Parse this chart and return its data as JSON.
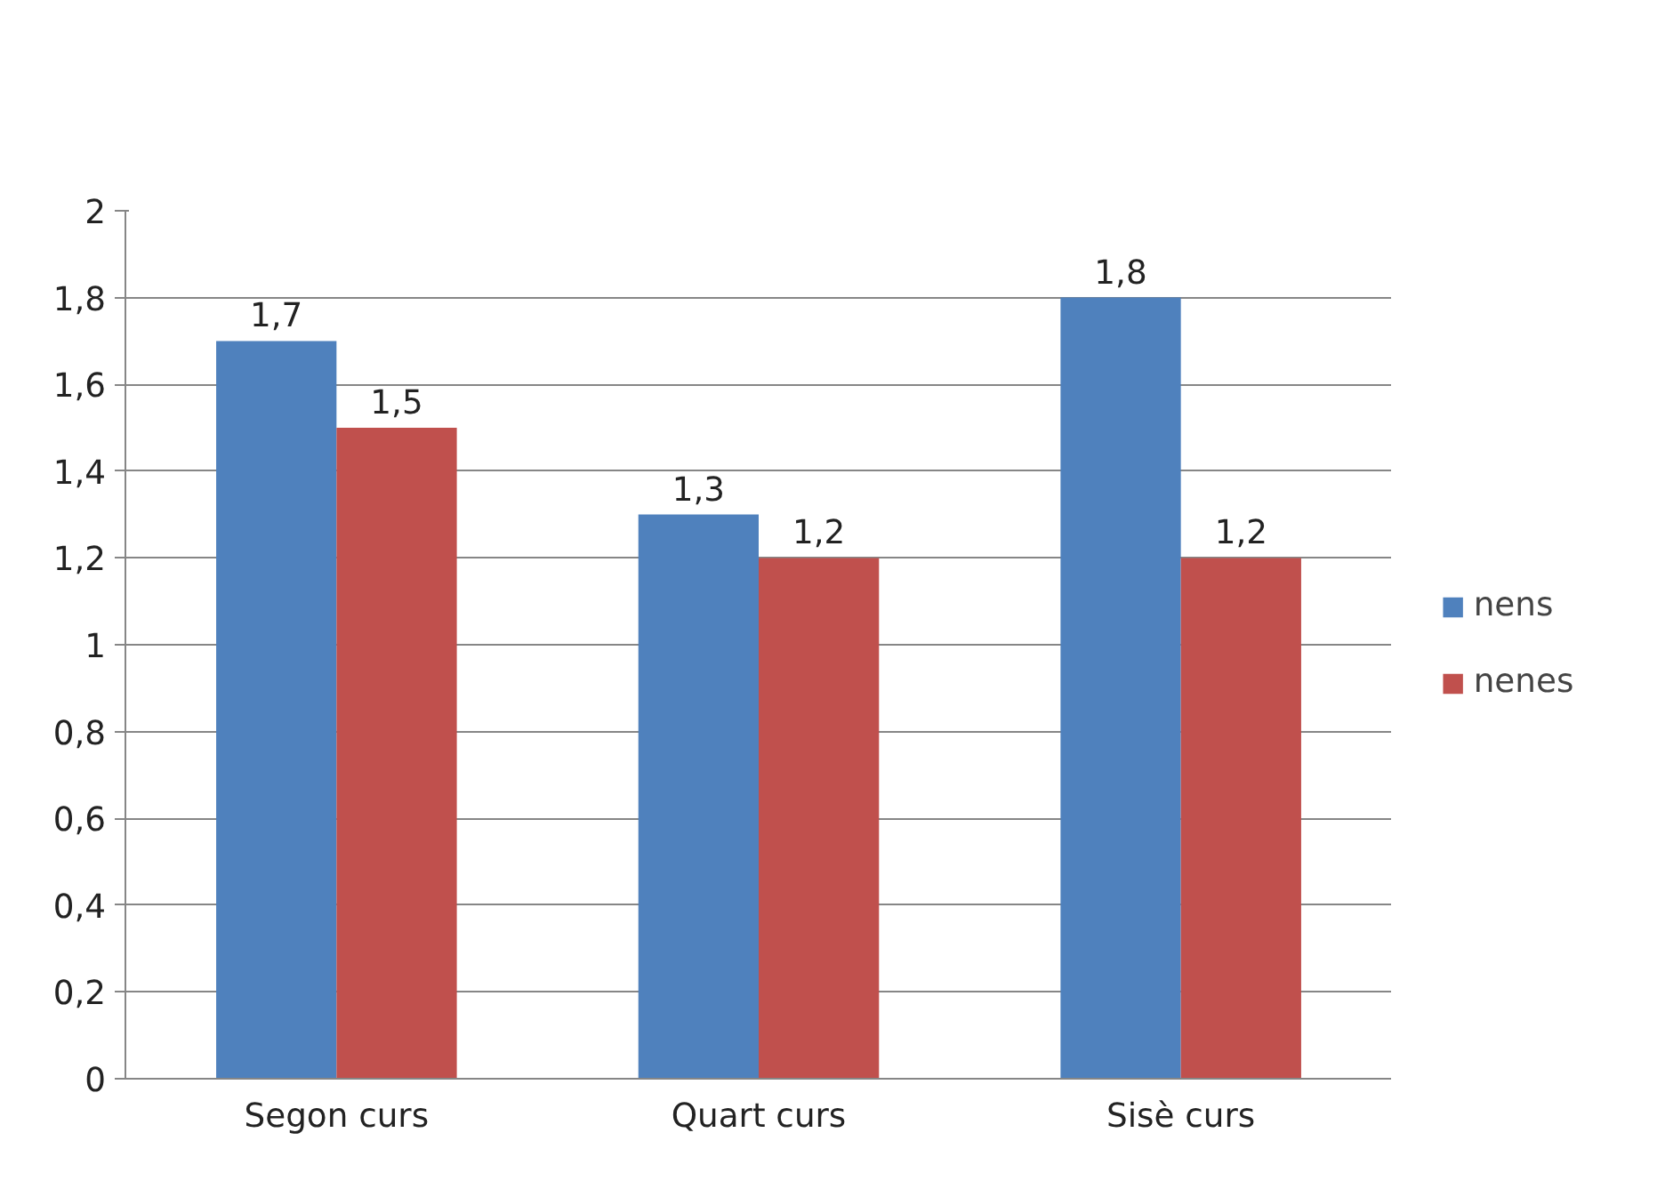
{
  "chart_data": {
    "type": "bar",
    "categories": [
      "Segon curs",
      "Quart curs",
      "Sisè curs"
    ],
    "series": [
      {
        "name": "nens",
        "color": "#4f81bd",
        "values": [
          1.7,
          1.3,
          1.8
        ],
        "value_labels": [
          "1,7",
          "1,3",
          "1,8"
        ]
      },
      {
        "name": "nenes",
        "color": "#c0504d",
        "values": [
          1.5,
          1.2,
          1.2
        ],
        "value_labels": [
          "1,5",
          "1,2",
          "1,2"
        ]
      }
    ],
    "ylim": [
      0,
      2
    ],
    "yticks": [
      0,
      {
        "value": 0.2,
        "label": "0,2"
      },
      {
        "value": 0.4,
        "label": "0,4"
      },
      {
        "value": 0.6,
        "label": "0,6"
      },
      {
        "value": 0.8,
        "label": "0,8"
      },
      1,
      {
        "value": 1.2,
        "label": "1,2"
      },
      {
        "value": 1.4,
        "label": "1,4"
      },
      {
        "value": 1.6,
        "label": "1,6"
      },
      {
        "value": 1.8,
        "label": "1,8"
      },
      2
    ],
    "grid": "y",
    "legend": "right"
  }
}
